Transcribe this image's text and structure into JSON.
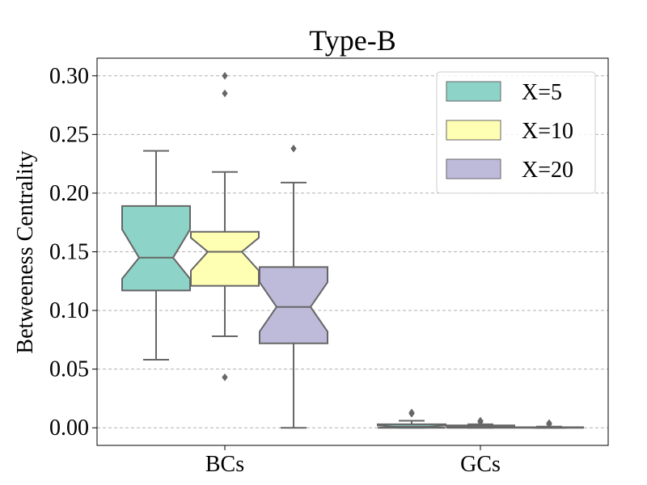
{
  "chart_data": {
    "type": "boxplot",
    "title": "Type-B",
    "xlabel": "",
    "ylabel": "Betweeness Centrality",
    "ylim": [
      -0.015,
      0.315
    ],
    "yticks": [
      0.0,
      0.05,
      0.1,
      0.15,
      0.2,
      0.25,
      0.3
    ],
    "ytick_labels": [
      "0.00",
      "0.05",
      "0.10",
      "0.15",
      "0.20",
      "0.25",
      "0.30"
    ],
    "categories": [
      "BCs",
      "GCs"
    ],
    "grid": "horizontal dashed",
    "legend_position": "top-right",
    "notched": true,
    "series": [
      {
        "name": "X=5",
        "color": "#8dd3c7",
        "boxes": [
          {
            "category": "BCs",
            "whisker_low": 0.058,
            "q1": 0.117,
            "notch_low": 0.127,
            "median": 0.145,
            "notch_high": 0.169,
            "q3": 0.189,
            "whisker_high": 0.236,
            "outliers": []
          },
          {
            "category": "GCs",
            "whisker_low": 0.0,
            "q1": 0.0,
            "notch_low": 0.0,
            "median": 0.001,
            "notch_high": 0.002,
            "q3": 0.003,
            "whisker_high": 0.006,
            "outliers": [
              0.012,
              0.013
            ]
          }
        ]
      },
      {
        "name": "X=10",
        "color": "#ffffb3",
        "boxes": [
          {
            "category": "BCs",
            "whisker_low": 0.078,
            "q1": 0.121,
            "notch_low": 0.134,
            "median": 0.15,
            "notch_high": 0.162,
            "q3": 0.167,
            "whisker_high": 0.218,
            "outliers": [
              0.043,
              0.285,
              0.3
            ]
          },
          {
            "category": "GCs",
            "whisker_low": 0.0,
            "q1": 0.0,
            "notch_low": 0.0,
            "median": 0.001,
            "notch_high": 0.001,
            "q3": 0.002,
            "whisker_high": 0.003,
            "outliers": [
              0.005,
              0.006
            ]
          }
        ]
      },
      {
        "name": "X=20",
        "color": "#bebada",
        "boxes": [
          {
            "category": "BCs",
            "whisker_low": 0.0,
            "q1": 0.072,
            "notch_low": 0.082,
            "median": 0.103,
            "notch_high": 0.124,
            "q3": 0.137,
            "whisker_high": 0.209,
            "outliers": [
              0.238
            ]
          },
          {
            "category": "GCs",
            "whisker_low": 0.0,
            "q1": 0.0,
            "notch_low": 0.0,
            "median": 0.0,
            "notch_high": 0.0,
            "q3": 0.0005,
            "whisker_high": 0.001,
            "outliers": [
              0.003,
              0.004
            ]
          }
        ]
      }
    ]
  }
}
